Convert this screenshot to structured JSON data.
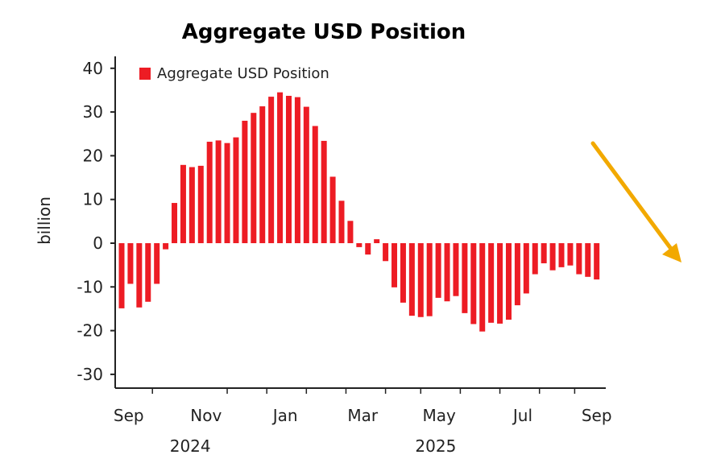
{
  "chart_data": {
    "type": "bar",
    "title": "Aggregate USD Position",
    "ylabel": "billion",
    "xlabel": "",
    "ylim": [
      -33,
      43
    ],
    "yticks": [
      40,
      30,
      20,
      10,
      0,
      -10,
      -20,
      -30
    ],
    "legend": {
      "label": "Aggregate USD Position",
      "placement": "top-left"
    },
    "series": [
      {
        "name": "Aggregate USD Position",
        "color": "#ED1C24",
        "values": [
          -14.9,
          -9.3,
          -14.7,
          -13.4,
          -9.3,
          -1.4,
          9.2,
          17.9,
          17.4,
          17.7,
          23.2,
          23.5,
          22.9,
          24.2,
          28.0,
          29.8,
          31.3,
          33.5,
          34.5,
          33.7,
          33.4,
          31.2,
          26.8,
          23.4,
          15.2,
          9.7,
          5.1,
          -0.9,
          -2.6,
          0.9,
          -4.1,
          -10.1,
          -13.6,
          -16.6,
          -16.9,
          -16.7,
          -12.5,
          -13.3,
          -12.1,
          -16.0,
          -18.5,
          -20.2,
          -18.2,
          -18.4,
          -17.5,
          -14.2,
          -11.5,
          -7.1,
          -4.6,
          -6.2,
          -5.5,
          -5.1,
          -7.1,
          -7.7,
          -8.3
        ]
      }
    ],
    "x_tick_labels": [
      {
        "label": "Sep",
        "at_index": 0.8
      },
      {
        "label": "Nov",
        "at_index": 9.6
      },
      {
        "label": "Jan",
        "at_index": 18.6
      },
      {
        "label": "Mar",
        "at_index": 27.4
      },
      {
        "label": "May",
        "at_index": 36.1
      },
      {
        "label": "Jul",
        "at_index": 45.6
      },
      {
        "label": "Sep",
        "at_index": 54.0
      }
    ],
    "x_minor_ticks_at_index": [
      3.5,
      12,
      16.5,
      21,
      25.5,
      30,
      34,
      38.5,
      43,
      47.5,
      51.5
    ],
    "year_labels": [
      {
        "label": "2024",
        "at_index": 7.8
      },
      {
        "label": "2025",
        "at_index": 35.7
      }
    ],
    "annotation": {
      "type": "arrow",
      "direction": "down-right",
      "color": "#F2A900"
    }
  }
}
